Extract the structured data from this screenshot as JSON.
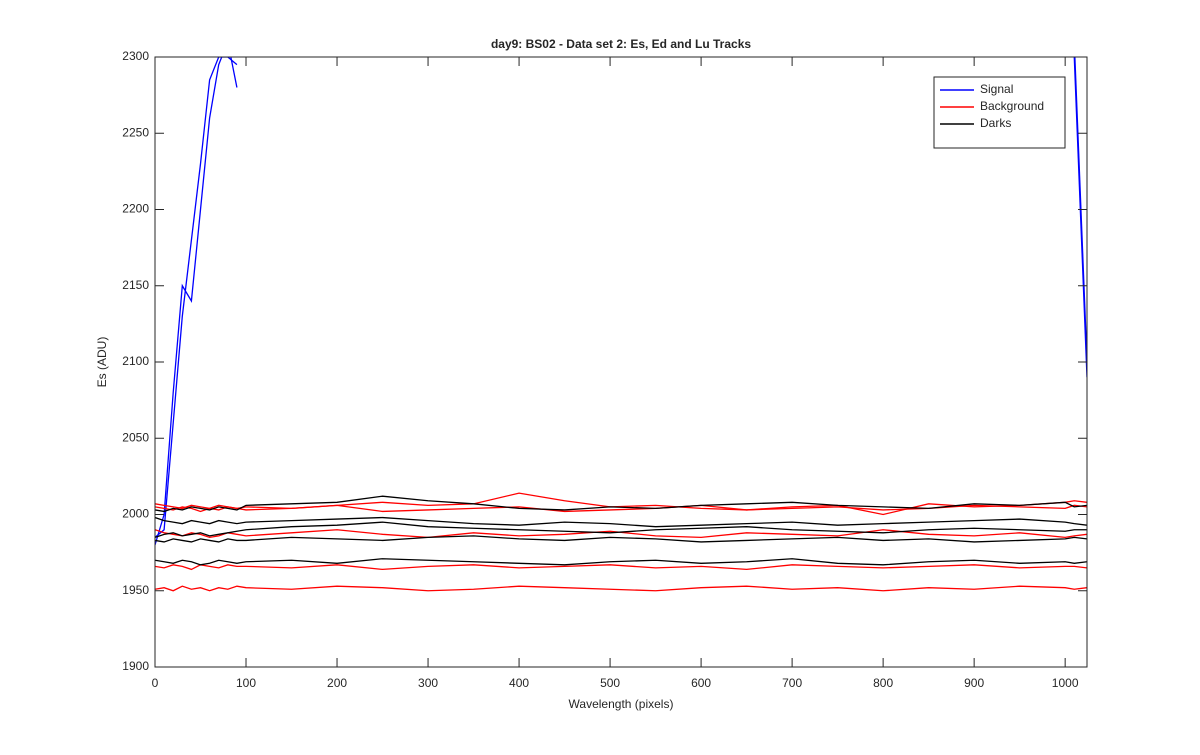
{
  "chart_data": {
    "type": "line",
    "title": "day9: BS02 - Data set 2: Es, Ed and Lu Tracks",
    "xlabel": "Wavelength (pixels)",
    "ylabel": "Es (ADU)",
    "x": [
      0,
      10,
      20,
      30,
      40,
      50,
      60,
      70,
      80,
      90,
      100,
      150,
      200,
      250,
      300,
      350,
      400,
      450,
      500,
      550,
      600,
      650,
      700,
      750,
      800,
      850,
      900,
      950,
      1000,
      1010,
      1024
    ],
    "xlim": [
      0,
      1024
    ],
    "xticks": [
      0,
      100,
      200,
      300,
      400,
      500,
      600,
      700,
      800,
      900,
      1000
    ],
    "ylim": [
      1900,
      2300
    ],
    "yticks": [
      1900,
      1950,
      2000,
      2050,
      2100,
      2150,
      2200,
      2250,
      2300
    ],
    "legend": "northeast",
    "series": [
      {
        "name": "Signal",
        "color": "#0000ff",
        "values": [
          [
            1985,
            1990,
            2060,
            2130,
            2180,
            2230,
            2285,
            2300,
            2300,
            2295,
            null,
            null,
            null,
            null,
            null,
            null,
            null,
            null,
            null,
            null,
            null,
            null,
            null,
            null,
            null,
            null,
            null,
            null,
            null,
            2300,
            2090
          ],
          [
            1980,
            2000,
            2080,
            2150,
            2140,
            2200,
            2260,
            2295,
            2310,
            2280,
            null,
            null,
            null,
            null,
            null,
            null,
            null,
            null,
            null,
            null,
            null,
            null,
            null,
            null,
            null,
            null,
            null,
            null,
            null,
            2310,
            2100
          ]
        ]
      },
      {
        "name": "Background",
        "color": "#ff0000",
        "values": [
          [
            1951,
            1952,
            1950,
            1953,
            1951,
            1952,
            1950,
            1952,
            1951,
            1953,
            1952,
            1951,
            1953,
            1952,
            1950,
            1951,
            1953,
            1952,
            1951,
            1950,
            1952,
            1953,
            1951,
            1952,
            1950,
            1952,
            1951,
            1953,
            1952,
            1951,
            1952
          ],
          [
            1966,
            1965,
            1967,
            1966,
            1964,
            1967,
            1966,
            1965,
            1967,
            1966,
            1966,
            1965,
            1967,
            1964,
            1966,
            1967,
            1965,
            1966,
            1967,
            1965,
            1966,
            1964,
            1967,
            1966,
            1965,
            1966,
            1967,
            1965,
            1966,
            1966,
            1965
          ],
          [
            1990,
            1988,
            1987,
            1986,
            1988,
            1987,
            1985,
            1986,
            1988,
            1987,
            1986,
            1988,
            1990,
            1987,
            1985,
            1988,
            1986,
            1987,
            1989,
            1986,
            1985,
            1988,
            1987,
            1986,
            1990,
            1987,
            1986,
            1988,
            1985,
            1986,
            1987
          ],
          [
            2005,
            2004,
            2003,
            2005,
            2004,
            2002,
            2004,
            2003,
            2005,
            2004,
            2003,
            2004,
            2006,
            2002,
            2003,
            2004,
            2005,
            2002,
            2003,
            2004,
            2006,
            2003,
            2004,
            2005,
            2003,
            2004,
            2006,
            2005,
            2004,
            2006,
            2005
          ],
          [
            2007,
            2006,
            2005,
            2004,
            2006,
            2005,
            2004,
            2006,
            2005,
            2004,
            2005,
            2004,
            2006,
            2008,
            2006,
            2007,
            2014,
            2009,
            2005,
            2006,
            2004,
            2003,
            2005,
            2006,
            2000,
            2007,
            2005,
            2006,
            2008,
            2009,
            2008
          ]
        ]
      },
      {
        "name": "Darks",
        "color": "#000000",
        "values": [
          [
            1970,
            1969,
            1968,
            1970,
            1969,
            1967,
            1968,
            1970,
            1969,
            1968,
            1969,
            1970,
            1968,
            1971,
            1970,
            1969,
            1968,
            1967,
            1969,
            1970,
            1968,
            1969,
            1971,
            1968,
            1967,
            1969,
            1970,
            1968,
            1969,
            1968,
            1969
          ],
          [
            1985,
            1987,
            1988,
            1986,
            1987,
            1988,
            1986,
            1987,
            1988,
            1989,
            1990,
            1992,
            1993,
            1995,
            1992,
            1991,
            1990,
            1989,
            1988,
            1990,
            1991,
            1992,
            1990,
            1989,
            1988,
            1990,
            1991,
            1990,
            1989,
            1990,
            1990
          ],
          [
            2003,
            2002,
            2004,
            2003,
            2005,
            2004,
            2003,
            2005,
            2004,
            2003,
            2006,
            2007,
            2008,
            2012,
            2009,
            2007,
            2004,
            2003,
            2005,
            2004,
            2006,
            2007,
            2008,
            2006,
            2005,
            2004,
            2007,
            2006,
            2008,
            2005,
            2006
          ],
          [
            1998,
            1996,
            1995,
            1994,
            1996,
            1995,
            1994,
            1996,
            1995,
            1994,
            1995,
            1996,
            1997,
            1998,
            1996,
            1994,
            1993,
            1995,
            1994,
            1992,
            1993,
            1994,
            1995,
            1993,
            1994,
            1995,
            1996,
            1997,
            1995,
            1994,
            1993
          ],
          [
            1983,
            1982,
            1984,
            1983,
            1982,
            1984,
            1983,
            1982,
            1984,
            1983,
            1983,
            1985,
            1984,
            1983,
            1985,
            1986,
            1984,
            1983,
            1985,
            1984,
            1982,
            1983,
            1984,
            1985,
            1983,
            1984,
            1982,
            1983,
            1984,
            1985,
            1984
          ]
        ]
      }
    ]
  }
}
